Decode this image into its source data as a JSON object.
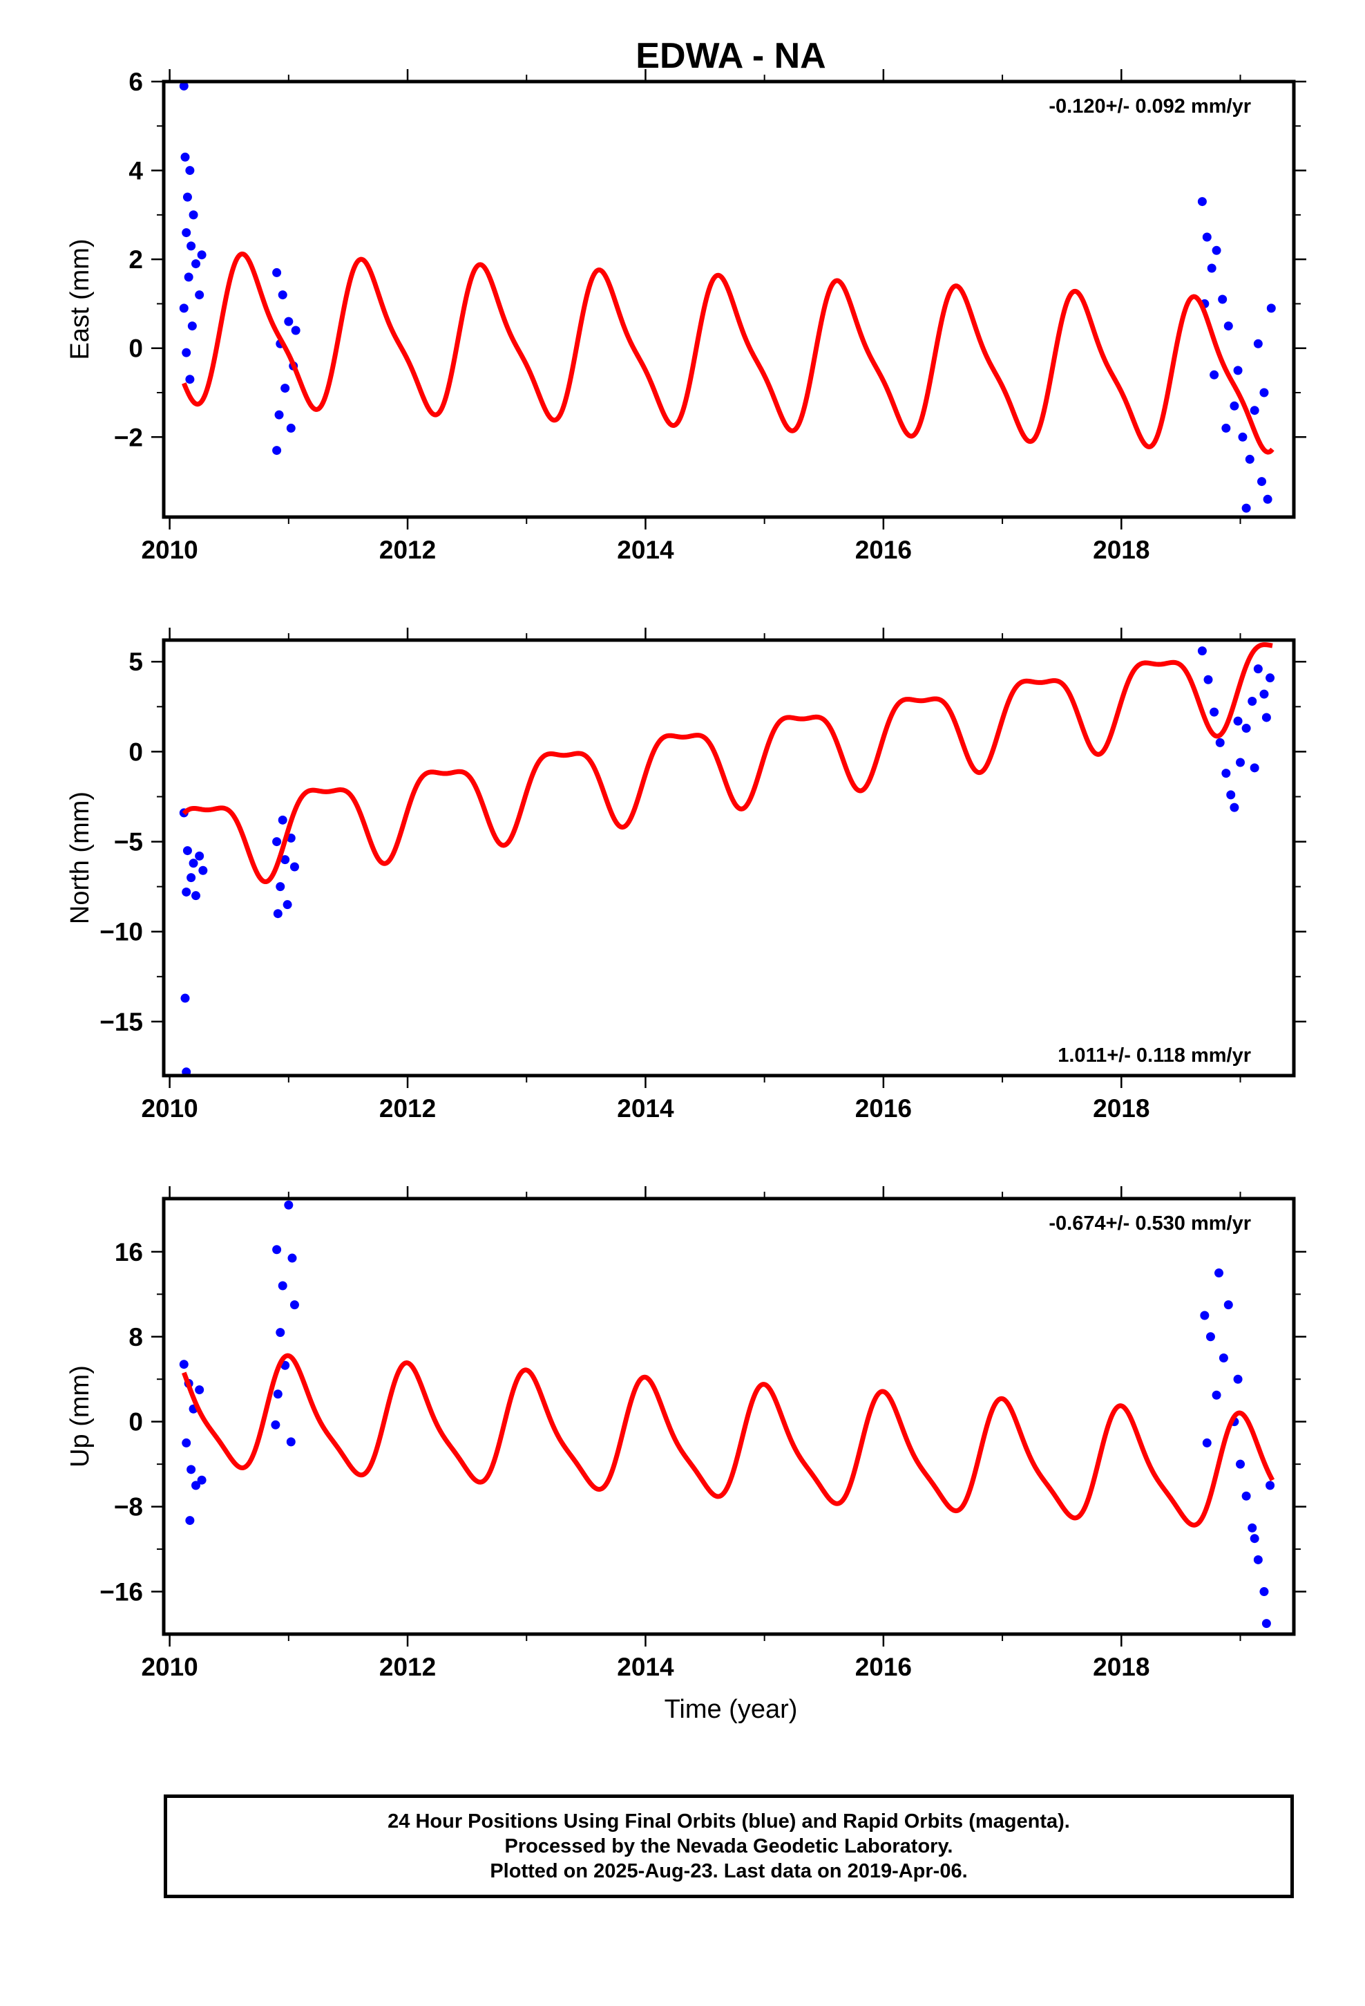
{
  "title": "EDWA - NA",
  "xlabel": "Time (year)",
  "colors": {
    "final_orbits": "#0000ff",
    "model": "#ff0000",
    "axes": "#000000"
  },
  "footer": {
    "line1": "24 Hour Positions Using Final Orbits (blue) and Rapid Orbits (magenta).",
    "line2": "Processed by the Nevada Geodetic Laboratory.",
    "line3": "Plotted on 2025-Aug-23. Last data on 2019-Apr-06."
  },
  "chart_data": [
    {
      "type": "scatter",
      "id": "east",
      "ylabel": "East (mm)",
      "velocity_label": "-0.120+/- 0.092 mm/yr",
      "label_position": "top-right",
      "xlim": [
        2009.95,
        2019.45
      ],
      "ylim": [
        -3.8,
        6.0
      ],
      "xticks": [
        2010,
        2012,
        2014,
        2016,
        2018
      ],
      "yticks": [
        -2,
        0,
        2,
        4,
        6
      ],
      "ytick_labels": [
        "−2",
        "0",
        "2",
        "4",
        "6"
      ],
      "data_segments": [
        [
          2010.12,
          2010.3
        ],
        [
          2010.88,
          2011.08
        ],
        [
          2018.66,
          2019.27
        ]
      ],
      "points": [
        [
          2010.12,
          5.9
        ],
        [
          2010.13,
          4.3
        ],
        [
          2010.17,
          4.0
        ],
        [
          2010.15,
          3.4
        ],
        [
          2010.2,
          3.0
        ],
        [
          2010.14,
          2.6
        ],
        [
          2010.18,
          2.3
        ],
        [
          2010.22,
          1.9
        ],
        [
          2010.16,
          1.6
        ],
        [
          2010.25,
          1.2
        ],
        [
          2010.12,
          0.9
        ],
        [
          2010.19,
          0.5
        ],
        [
          2010.14,
          -0.1
        ],
        [
          2010.17,
          -0.7
        ],
        [
          2010.27,
          2.1
        ],
        [
          2010.9,
          1.7
        ],
        [
          2010.95,
          1.2
        ],
        [
          2011.0,
          0.6
        ],
        [
          2010.93,
          0.1
        ],
        [
          2011.04,
          -0.4
        ],
        [
          2010.97,
          -0.9
        ],
        [
          2010.92,
          -1.5
        ],
        [
          2011.02,
          -1.8
        ],
        [
          2010.9,
          -2.3
        ],
        [
          2011.06,
          0.4
        ],
        [
          2018.68,
          3.3
        ],
        [
          2018.72,
          2.5
        ],
        [
          2018.76,
          1.8
        ],
        [
          2018.8,
          2.2
        ],
        [
          2018.7,
          1.0
        ],
        [
          2018.85,
          1.1
        ],
        [
          2018.9,
          0.5
        ],
        [
          2018.78,
          -0.6
        ],
        [
          2018.95,
          -1.3
        ],
        [
          2019.02,
          -2.0
        ],
        [
          2019.08,
          -2.5
        ],
        [
          2019.12,
          -1.4
        ],
        [
          2019.18,
          -3.0
        ],
        [
          2019.23,
          -3.4
        ],
        [
          2019.05,
          -3.6
        ],
        [
          2019.26,
          0.9
        ],
        [
          2019.15,
          0.1
        ],
        [
          2018.98,
          -0.5
        ],
        [
          2018.88,
          -1.8
        ],
        [
          2019.2,
          -1.0
        ]
      ],
      "model": {
        "trend_offset": -0.1,
        "trend_rate": -0.12,
        "t0": 2014.5,
        "annual_amplitude": 1.55,
        "annual_phase": -2.62,
        "semiannual_amplitude": 0.4,
        "semiannual_phase": 0.9
      }
    },
    {
      "type": "scatter",
      "id": "north",
      "ylabel": "North (mm)",
      "velocity_label": "1.011+/- 0.118 mm/yr",
      "label_position": "bottom-right",
      "xlim": [
        2009.95,
        2019.45
      ],
      "ylim": [
        -18.0,
        6.2
      ],
      "xticks": [
        2010,
        2012,
        2014,
        2016,
        2018
      ],
      "yticks": [
        -15,
        -10,
        -5,
        0,
        5
      ],
      "ytick_labels": [
        "−15",
        "−10",
        "−5",
        "0",
        "5"
      ],
      "data_segments": [
        [
          2010.12,
          2010.3
        ],
        [
          2010.88,
          2011.08
        ],
        [
          2018.66,
          2019.27
        ]
      ],
      "points": [
        [
          2010.12,
          -3.4
        ],
        [
          2010.15,
          -5.5
        ],
        [
          2010.2,
          -6.2
        ],
        [
          2010.25,
          -5.8
        ],
        [
          2010.18,
          -7.0
        ],
        [
          2010.14,
          -7.8
        ],
        [
          2010.22,
          -8.0
        ],
        [
          2010.13,
          -13.7
        ],
        [
          2010.14,
          -17.8
        ],
        [
          2010.28,
          -6.6
        ],
        [
          2010.9,
          -5.0
        ],
        [
          2010.97,
          -6.0
        ],
        [
          2011.02,
          -4.8
        ],
        [
          2010.93,
          -7.5
        ],
        [
          2010.99,
          -8.5
        ],
        [
          2010.91,
          -9.0
        ],
        [
          2011.05,
          -6.4
        ],
        [
          2010.95,
          -3.8
        ],
        [
          2018.68,
          5.6
        ],
        [
          2018.73,
          4.0
        ],
        [
          2018.78,
          2.2
        ],
        [
          2018.83,
          0.5
        ],
        [
          2018.88,
          -1.2
        ],
        [
          2018.92,
          -2.4
        ],
        [
          2018.95,
          -3.1
        ],
        [
          2019.0,
          -0.6
        ],
        [
          2019.05,
          1.3
        ],
        [
          2019.1,
          2.8
        ],
        [
          2019.15,
          4.6
        ],
        [
          2019.2,
          3.2
        ],
        [
          2019.25,
          4.1
        ],
        [
          2018.98,
          1.7
        ],
        [
          2019.12,
          -0.9
        ],
        [
          2019.22,
          1.9
        ]
      ],
      "model": {
        "trend_offset": -0.5,
        "trend_rate": 1.011,
        "t0": 2014.5,
        "annual_amplitude": 2.25,
        "annual_phase": -0.34,
        "semiannual_amplitude": 0.75,
        "semiannual_phase": 0.75
      }
    },
    {
      "type": "scatter",
      "id": "up",
      "ylabel": "Up (mm)",
      "velocity_label": "-0.674+/- 0.530 mm/yr",
      "label_position": "top-right",
      "xlim": [
        2009.95,
        2019.45
      ],
      "ylim": [
        -20.0,
        21.0
      ],
      "xticks": [
        2010,
        2012,
        2014,
        2016,
        2018
      ],
      "yticks": [
        -16,
        -8,
        0,
        8,
        16
      ],
      "ytick_labels": [
        "−16",
        "−8",
        "0",
        "8",
        "16"
      ],
      "data_segments": [
        [
          2010.12,
          2010.3
        ],
        [
          2010.88,
          2011.08
        ],
        [
          2018.66,
          2019.27
        ]
      ],
      "points": [
        [
          2010.12,
          5.4
        ],
        [
          2010.16,
          3.6
        ],
        [
          2010.2,
          1.2
        ],
        [
          2010.14,
          -2.0
        ],
        [
          2010.18,
          -4.5
        ],
        [
          2010.22,
          -6.0
        ],
        [
          2010.17,
          -9.3
        ],
        [
          2010.25,
          3.0
        ],
        [
          2010.27,
          -5.5
        ],
        [
          2010.9,
          16.2
        ],
        [
          2010.95,
          12.8
        ],
        [
          2011.0,
          20.4
        ],
        [
          2011.03,
          15.4
        ],
        [
          2010.93,
          8.4
        ],
        [
          2010.97,
          5.3
        ],
        [
          2010.91,
          2.6
        ],
        [
          2011.02,
          -1.9
        ],
        [
          2010.89,
          -0.3
        ],
        [
          2011.05,
          11.0
        ],
        [
          2018.7,
          10.0
        ],
        [
          2018.75,
          8.0
        ],
        [
          2018.82,
          14.0
        ],
        [
          2018.86,
          6.0
        ],
        [
          2018.9,
          11.0
        ],
        [
          2018.8,
          2.5
        ],
        [
          2018.95,
          0.0
        ],
        [
          2018.72,
          -2.0
        ],
        [
          2019.0,
          -4.0
        ],
        [
          2019.05,
          -7.0
        ],
        [
          2019.1,
          -10.0
        ],
        [
          2019.15,
          -13.0
        ],
        [
          2019.2,
          -16.0
        ],
        [
          2019.25,
          -6.0
        ],
        [
          2019.22,
          -19.0
        ],
        [
          2019.12,
          -11.0
        ],
        [
          2018.98,
          4.0
        ]
      ],
      "model": {
        "trend_offset": -2.0,
        "trend_rate": -0.674,
        "t0": 2014.5,
        "annual_amplitude": 5.0,
        "annual_phase": 1.35,
        "semiannual_amplitude": 1.2,
        "semiannual_phase": 2.2
      }
    }
  ]
}
